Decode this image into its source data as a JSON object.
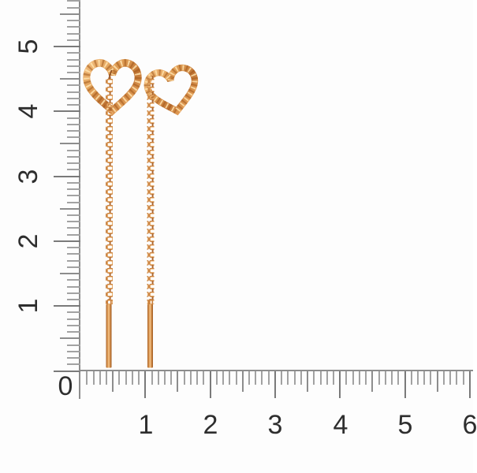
{
  "scene": {
    "type": "jewelry product photo on white background with centimeter rulers",
    "objects": [
      {
        "name": "left-earring",
        "kind": "rose-gold open-heart threader earring with cable chain and straight bar"
      },
      {
        "name": "right-earring",
        "kind": "rose-gold open-heart threader earring (tilted heart) with cable chain and straight bar"
      }
    ]
  },
  "rulers": {
    "origin_label": "0",
    "horizontal": {
      "labels": [
        "1",
        "2",
        "3",
        "4",
        "5",
        "6"
      ]
    },
    "vertical": {
      "labels": [
        "5",
        "4",
        "3",
        "2",
        "1"
      ]
    }
  },
  "colors": {
    "background": "#fdfdfd",
    "ruler_line": "#8d8d8d",
    "tick_minor": "#a2a2a2",
    "tick_medium": "#8d8d8d",
    "tick_major": "#7a7a7a",
    "label_text": "#2e2e2e",
    "gold_highlight": "#f6c78d",
    "gold_mid": "#dd9a52",
    "gold_dark": "#a8602a",
    "gold_shadow": "#8a4a1e"
  }
}
